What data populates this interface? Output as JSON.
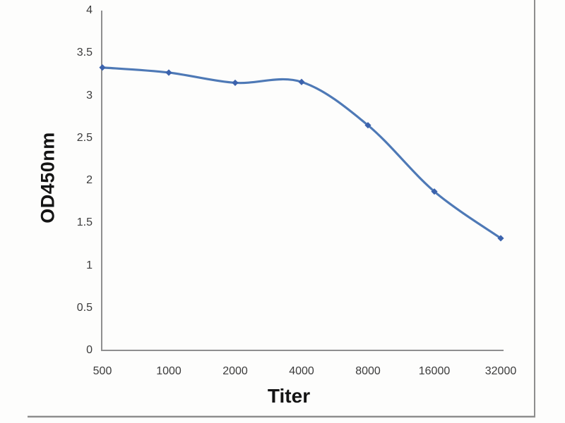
{
  "chart_data": {
    "type": "line",
    "title": "",
    "xlabel": "Titer",
    "ylabel": "OD450nm",
    "x_categories": [
      "500",
      "1000",
      "2000",
      "4000",
      "8000",
      "16000",
      "32000"
    ],
    "series": [
      {
        "name": "OD450nm",
        "values": [
          3.33,
          3.27,
          3.15,
          3.16,
          2.65,
          1.87,
          1.32
        ]
      }
    ],
    "ylim": [
      0,
      4
    ],
    "ytick_step": 0.5,
    "yticks": [
      "4",
      "3.5",
      "3",
      "2.5",
      "2",
      "1.5",
      "1",
      "0.5",
      "0"
    ],
    "grid": "off",
    "legend": "none",
    "smooth": true,
    "marker": "diamond"
  },
  "colors": {
    "line": "#4e79b6",
    "marker": "#3c63ad",
    "axis": "#8f8f8f",
    "border": "#8e8e8e",
    "tick_text": "#3b3b3b",
    "title_text": "#141414",
    "background": "#fdfdfc"
  }
}
